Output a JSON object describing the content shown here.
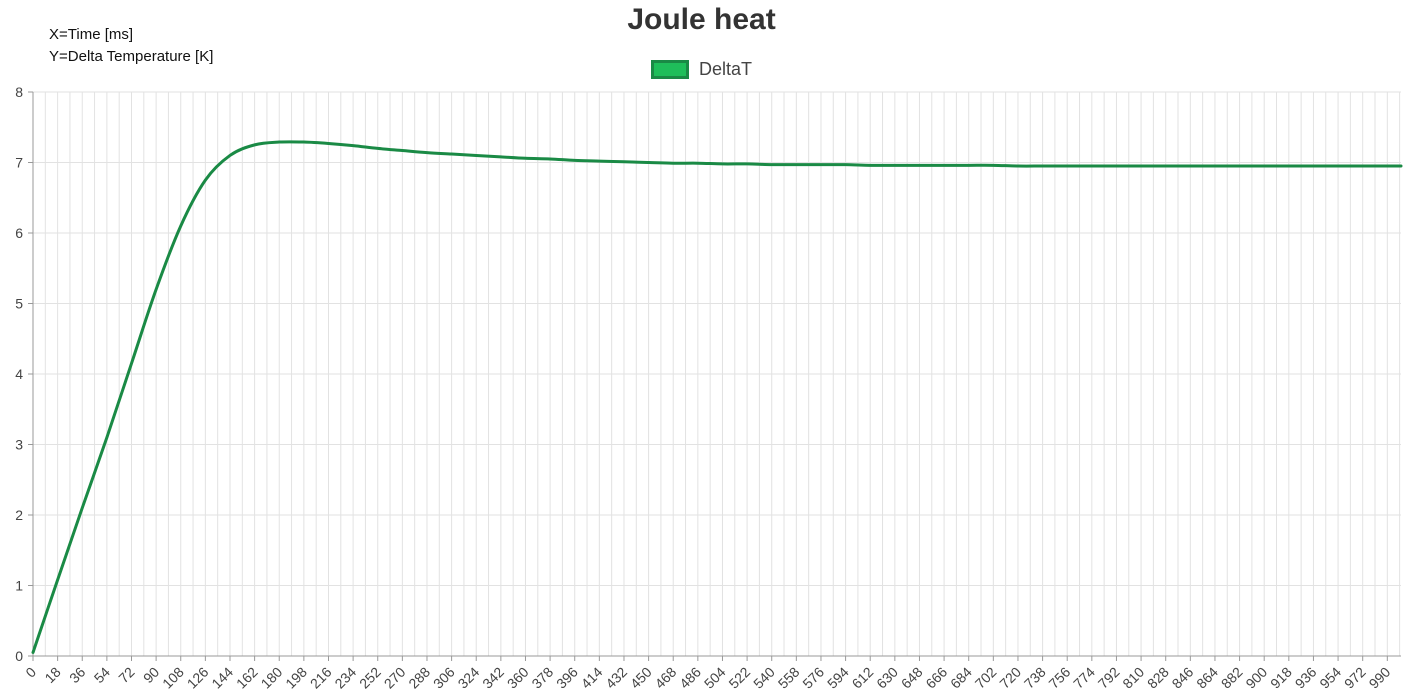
{
  "axis_note": {
    "x_line": "X=Time [ms]",
    "y_line": "Y=Delta Temperature [K]"
  },
  "colors": {
    "line": "#1a8a45",
    "fill": "#1fbe5a",
    "grid": "#e2e2e2",
    "axis": "#999999"
  },
  "chart_data": {
    "type": "line",
    "title": "Joule heat",
    "xlabel": "",
    "ylabel": "",
    "xlim": [
      0,
      1000
    ],
    "ylim": [
      0,
      8
    ],
    "x_ticks": [
      0,
      18,
      36,
      54,
      72,
      90,
      108,
      126,
      144,
      162,
      180,
      198,
      216,
      234,
      252,
      270,
      288,
      306,
      324,
      342,
      360,
      378,
      396,
      414,
      432,
      450,
      468,
      486,
      504,
      522,
      540,
      558,
      576,
      594,
      612,
      630,
      648,
      666,
      684,
      702,
      720,
      738,
      756,
      774,
      792,
      810,
      828,
      846,
      864,
      882,
      900,
      918,
      936,
      954,
      972,
      990
    ],
    "y_ticks": [
      0,
      1,
      2,
      3,
      4,
      5,
      6,
      7,
      8
    ],
    "grid": true,
    "legend": "top-center",
    "series": [
      {
        "name": "DeltaT",
        "x": [
          0,
          18,
          36,
          54,
          72,
          90,
          108,
          126,
          144,
          162,
          180,
          198,
          216,
          234,
          252,
          270,
          288,
          306,
          324,
          342,
          360,
          378,
          396,
          414,
          432,
          450,
          468,
          486,
          504,
          522,
          540,
          558,
          576,
          594,
          612,
          630,
          648,
          666,
          684,
          702,
          720,
          738,
          756,
          774,
          792,
          810,
          828,
          846,
          864,
          882,
          900,
          918,
          936,
          954,
          972,
          990,
          1000
        ],
        "values": [
          0.05,
          1.08,
          2.1,
          3.1,
          4.15,
          5.2,
          6.1,
          6.75,
          7.1,
          7.25,
          7.29,
          7.29,
          7.27,
          7.24,
          7.2,
          7.17,
          7.14,
          7.12,
          7.1,
          7.08,
          7.06,
          7.05,
          7.03,
          7.02,
          7.01,
          7.0,
          6.99,
          6.99,
          6.98,
          6.98,
          6.97,
          6.97,
          6.97,
          6.97,
          6.96,
          6.96,
          6.96,
          6.96,
          6.96,
          6.96,
          6.95,
          6.95,
          6.95,
          6.95,
          6.95,
          6.95,
          6.95,
          6.95,
          6.95,
          6.95,
          6.95,
          6.95,
          6.95,
          6.95,
          6.95,
          6.95,
          6.95
        ]
      }
    ]
  }
}
